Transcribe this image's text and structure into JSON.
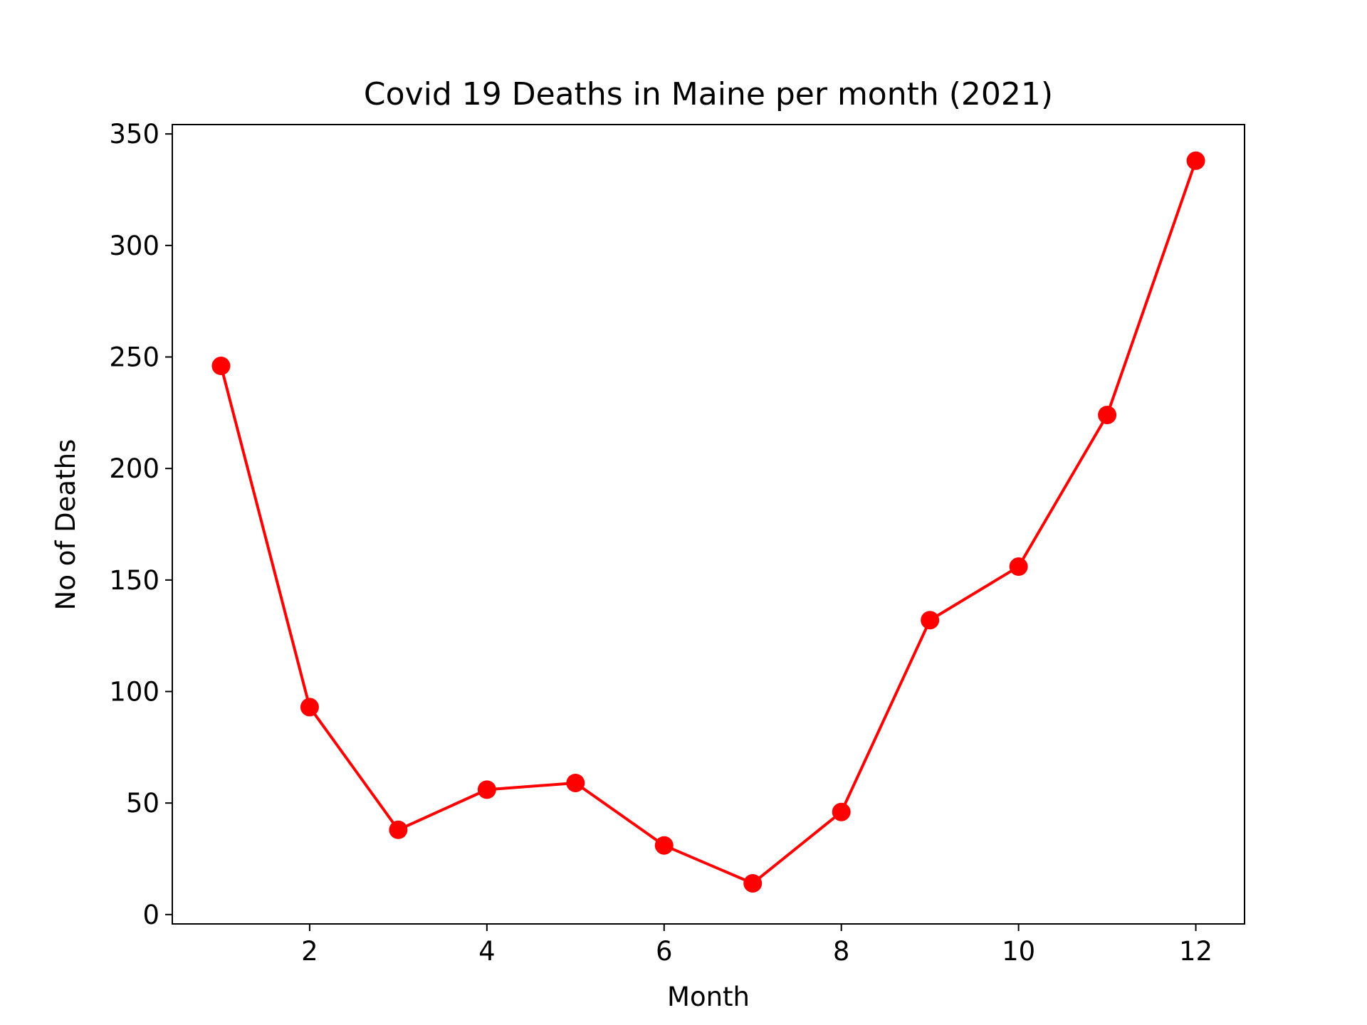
{
  "chart_data": {
    "type": "line",
    "title": "Covid 19 Deaths in Maine per month (2021)",
    "xlabel": "Month",
    "ylabel": "No of Deaths",
    "x": [
      1,
      2,
      3,
      4,
      5,
      6,
      7,
      8,
      9,
      10,
      11,
      12
    ],
    "series": [
      {
        "values": [
          246,
          93,
          38,
          56,
          59,
          31,
          14,
          46,
          132,
          156,
          224,
          338
        ],
        "color": "#ff0000",
        "marker": "circle"
      }
    ],
    "xlim": [
      0.45,
      12.55
    ],
    "ylim": [
      -4.2,
      354.2
    ],
    "xticks": [
      2,
      4,
      6,
      8,
      10,
      12
    ],
    "xtick_labels": [
      "2",
      "4",
      "6",
      "8",
      "10",
      "12"
    ],
    "yticks": [
      0,
      50,
      100,
      150,
      200,
      250,
      300,
      350
    ],
    "ytick_labels": [
      "0",
      "50",
      "100",
      "150",
      "200",
      "250",
      "300",
      "350"
    ],
    "grid": false,
    "legend": false
  }
}
